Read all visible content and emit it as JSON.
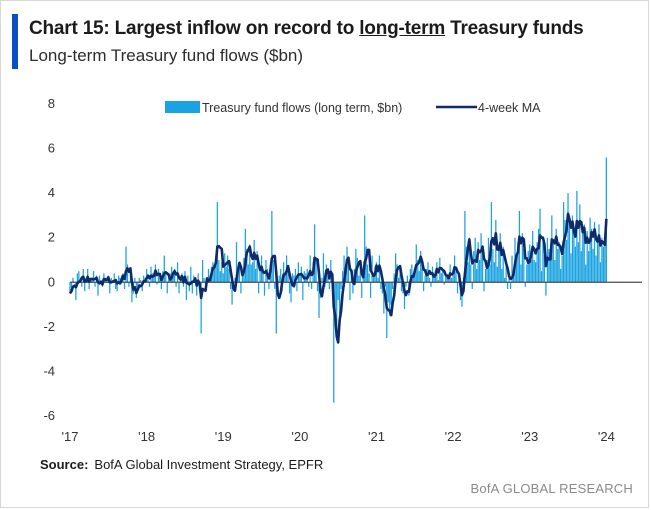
{
  "header": {
    "title_prefix": "Chart 15: Largest inflow on record to ",
    "title_underlined": "long-term",
    "title_suffix": " Treasury funds",
    "subtitle": "Long-term Treasury fund flows ($bn)"
  },
  "footer": {
    "source_label": "Source:",
    "source_text": "BofA Global Investment Strategy, EPFR",
    "brand": "BofA GLOBAL RESEARCH"
  },
  "chart_data": {
    "type": "bar",
    "title": "Long-term Treasury fund flows ($bn)",
    "xlabel": "",
    "ylabel": "",
    "ylim": [
      -6,
      8
    ],
    "yticks": [
      8,
      6,
      4,
      2,
      0,
      -2,
      -4,
      -6
    ],
    "xlim": [
      2017,
      2024.1
    ],
    "xticks": [
      {
        "value": 2017,
        "label": "'17"
      },
      {
        "value": 2018,
        "label": "'18"
      },
      {
        "value": 2019,
        "label": "'19"
      },
      {
        "value": 2020,
        "label": "'20"
      },
      {
        "value": 2021,
        "label": "'21"
      },
      {
        "value": 2022,
        "label": "'22"
      },
      {
        "value": 2023,
        "label": "'23"
      },
      {
        "value": 2024,
        "label": "'24"
      }
    ],
    "legend_position": "top-center",
    "colors": {
      "bars": "#1aa3e0",
      "ma": "#0e2a6b",
      "axis": "#555555"
    },
    "series": [
      {
        "name": "Treasury fund flows (long term, $bn)",
        "kind": "weekly-bars",
        "start": 2017.0,
        "step_weeks": 1,
        "values": [
          -0.5,
          -0.3,
          0.2,
          0.0,
          -0.8,
          0.4,
          0.5,
          0.1,
          -0.2,
          0.6,
          -0.4,
          0.2,
          0.6,
          -0.3,
          0.1,
          0.2,
          0.5,
          -0.2,
          0.3,
          -0.6,
          0.3,
          0.1,
          -0.2,
          0.4,
          0.2,
          0.0,
          0.3,
          -0.5,
          0.2,
          0.1,
          0.4,
          -0.3,
          -0.4,
          0.3,
          0.2,
          0.3,
          0.4,
          -0.3,
          1.6,
          0.8,
          -0.2,
          0.3,
          -0.9,
          -0.5,
          0.2,
          -0.7,
          -0.3,
          0.2,
          0.1,
          -0.4,
          0.3,
          0.2,
          0.6,
          0.1,
          -0.2,
          0.7,
          0.4,
          0.2,
          0.8,
          -0.1,
          0.6,
          0.2,
          -0.3,
          0.5,
          1.2,
          0.4,
          -0.5,
          0.2,
          0.4,
          0.7,
          0.3,
          0.6,
          -0.2,
          0.9,
          -0.5,
          0.3,
          0.4,
          -0.2,
          0.5,
          -0.8,
          0.3,
          -0.4,
          0.7,
          -0.5,
          0.3,
          0.2,
          -0.6,
          0.4,
          -0.3,
          -2.3,
          1.0,
          0.2,
          -0.4,
          -0.1,
          0.6,
          0.3,
          0.7,
          0.9,
          0.8,
          1.1,
          3.6,
          1.0,
          0.5,
          0.9,
          0.4,
          1.3,
          0.7,
          1.2,
          0.6,
          -0.3,
          -1.0,
          -0.4,
          0.2,
          1.8,
          0.6,
          0.9,
          -0.5,
          0.3,
          1.1,
          2.4,
          1.5,
          0.8,
          1.7,
          0.8,
          0.9,
          1.9,
          0.6,
          1.4,
          -0.5,
          0.7,
          1.2,
          0.4,
          -0.6,
          1.0,
          0.6,
          -0.3,
          0.8,
          3.2,
          1.0,
          -0.3,
          -2.3,
          -0.5,
          0.3,
          0.6,
          -0.4,
          0.9,
          0.3,
          1.2,
          0.5,
          -0.5,
          -0.9,
          0.4,
          0.3,
          0.6,
          -0.4,
          0.9,
          0.3,
          0.7,
          -0.8,
          0.5,
          0.4,
          0.6,
          -0.2,
          1.2,
          -0.3,
          0.9,
          2.6,
          1.0,
          -0.4,
          -1.6,
          -0.7,
          0.2,
          1.3,
          -0.2,
          0.8,
          0.4,
          -0.3,
          1.0,
          0.3,
          -5.4,
          -2.0,
          -2.6,
          -0.8,
          -1.4,
          -0.3,
          0.5,
          1.2,
          0.7,
          1.6,
          0.9,
          -0.8,
          0.4,
          -0.5,
          0.6,
          1.5,
          1.1,
          0.3,
          0.9,
          -0.7,
          0.4,
          3.0,
          1.6,
          0.8,
          0.4,
          -0.7,
          1.2,
          0.2,
          0.7,
          0.9,
          0.2,
          1.2,
          -0.3,
          -0.5,
          -1.4,
          -0.2,
          -2.5,
          -0.9,
          -1.5,
          -1.0,
          -0.3,
          0.4,
          1.3,
          0.8,
          0.2,
          0.6,
          -0.4,
          -0.5,
          -1.2,
          -0.2,
          0.3,
          -0.6,
          0.6,
          0.8,
          0.2,
          0.4,
          1.7,
          1.0,
          0.5,
          1.4,
          0.8,
          -0.4,
          0.3,
          0.6,
          0.9,
          0.2,
          -0.2,
          0.7,
          0.3,
          0.5,
          0.9,
          0.1,
          1.1,
          0.4,
          0.6,
          -0.1,
          0.4,
          0.3,
          0.1,
          0.8,
          0.2,
          0.5,
          1.2,
          0.7,
          -0.5,
          0.1,
          -0.8,
          -1.1,
          0.2,
          3.2,
          1.6,
          0.9,
          2.0,
          0.8,
          -0.3,
          1.4,
          2.0,
          0.6,
          1.8,
          1.0,
          2.2,
          1.4,
          -0.4,
          0.6,
          1.0,
          2.0,
          0.8,
          3.6,
          1.5,
          0.9,
          2.8,
          0.7,
          1.4,
          2.2,
          0.6,
          1.6,
          0.2,
          1.0,
          -0.3,
          0.2,
          -0.3,
          1.2,
          0.4,
          2.0,
          1.2,
          1.8,
          3.2,
          0.8,
          2.2,
          1.5,
          -0.2,
          0.8,
          1.4,
          1.7,
          1.0,
          2.3,
          1.0,
          0.9,
          1.8,
          2.4,
          3.3,
          0.5,
          1.8,
          1.2,
          -0.6,
          2.0,
          1.5,
          1.2,
          3.0,
          1.8,
          1.0,
          2.4,
          1.5,
          1.8,
          0.6,
          1.2,
          3.6,
          2.8,
          1.9,
          4.0,
          2.6,
          1.3,
          3.0,
          2.3,
          1.6,
          4.1,
          1.8,
          3.5,
          1.4,
          2.3,
          2.6,
          0.8,
          2.3,
          1.4,
          2.9,
          2.4,
          1.5,
          2.7,
          1.2,
          1.9,
          2.6,
          0.9,
          2.0,
          1.6,
          2.2,
          5.6
        ]
      },
      {
        "name": "4-week MA",
        "kind": "line",
        "derived_from": "Treasury fund flows (long term, $bn)",
        "window_weeks": 4
      }
    ]
  }
}
